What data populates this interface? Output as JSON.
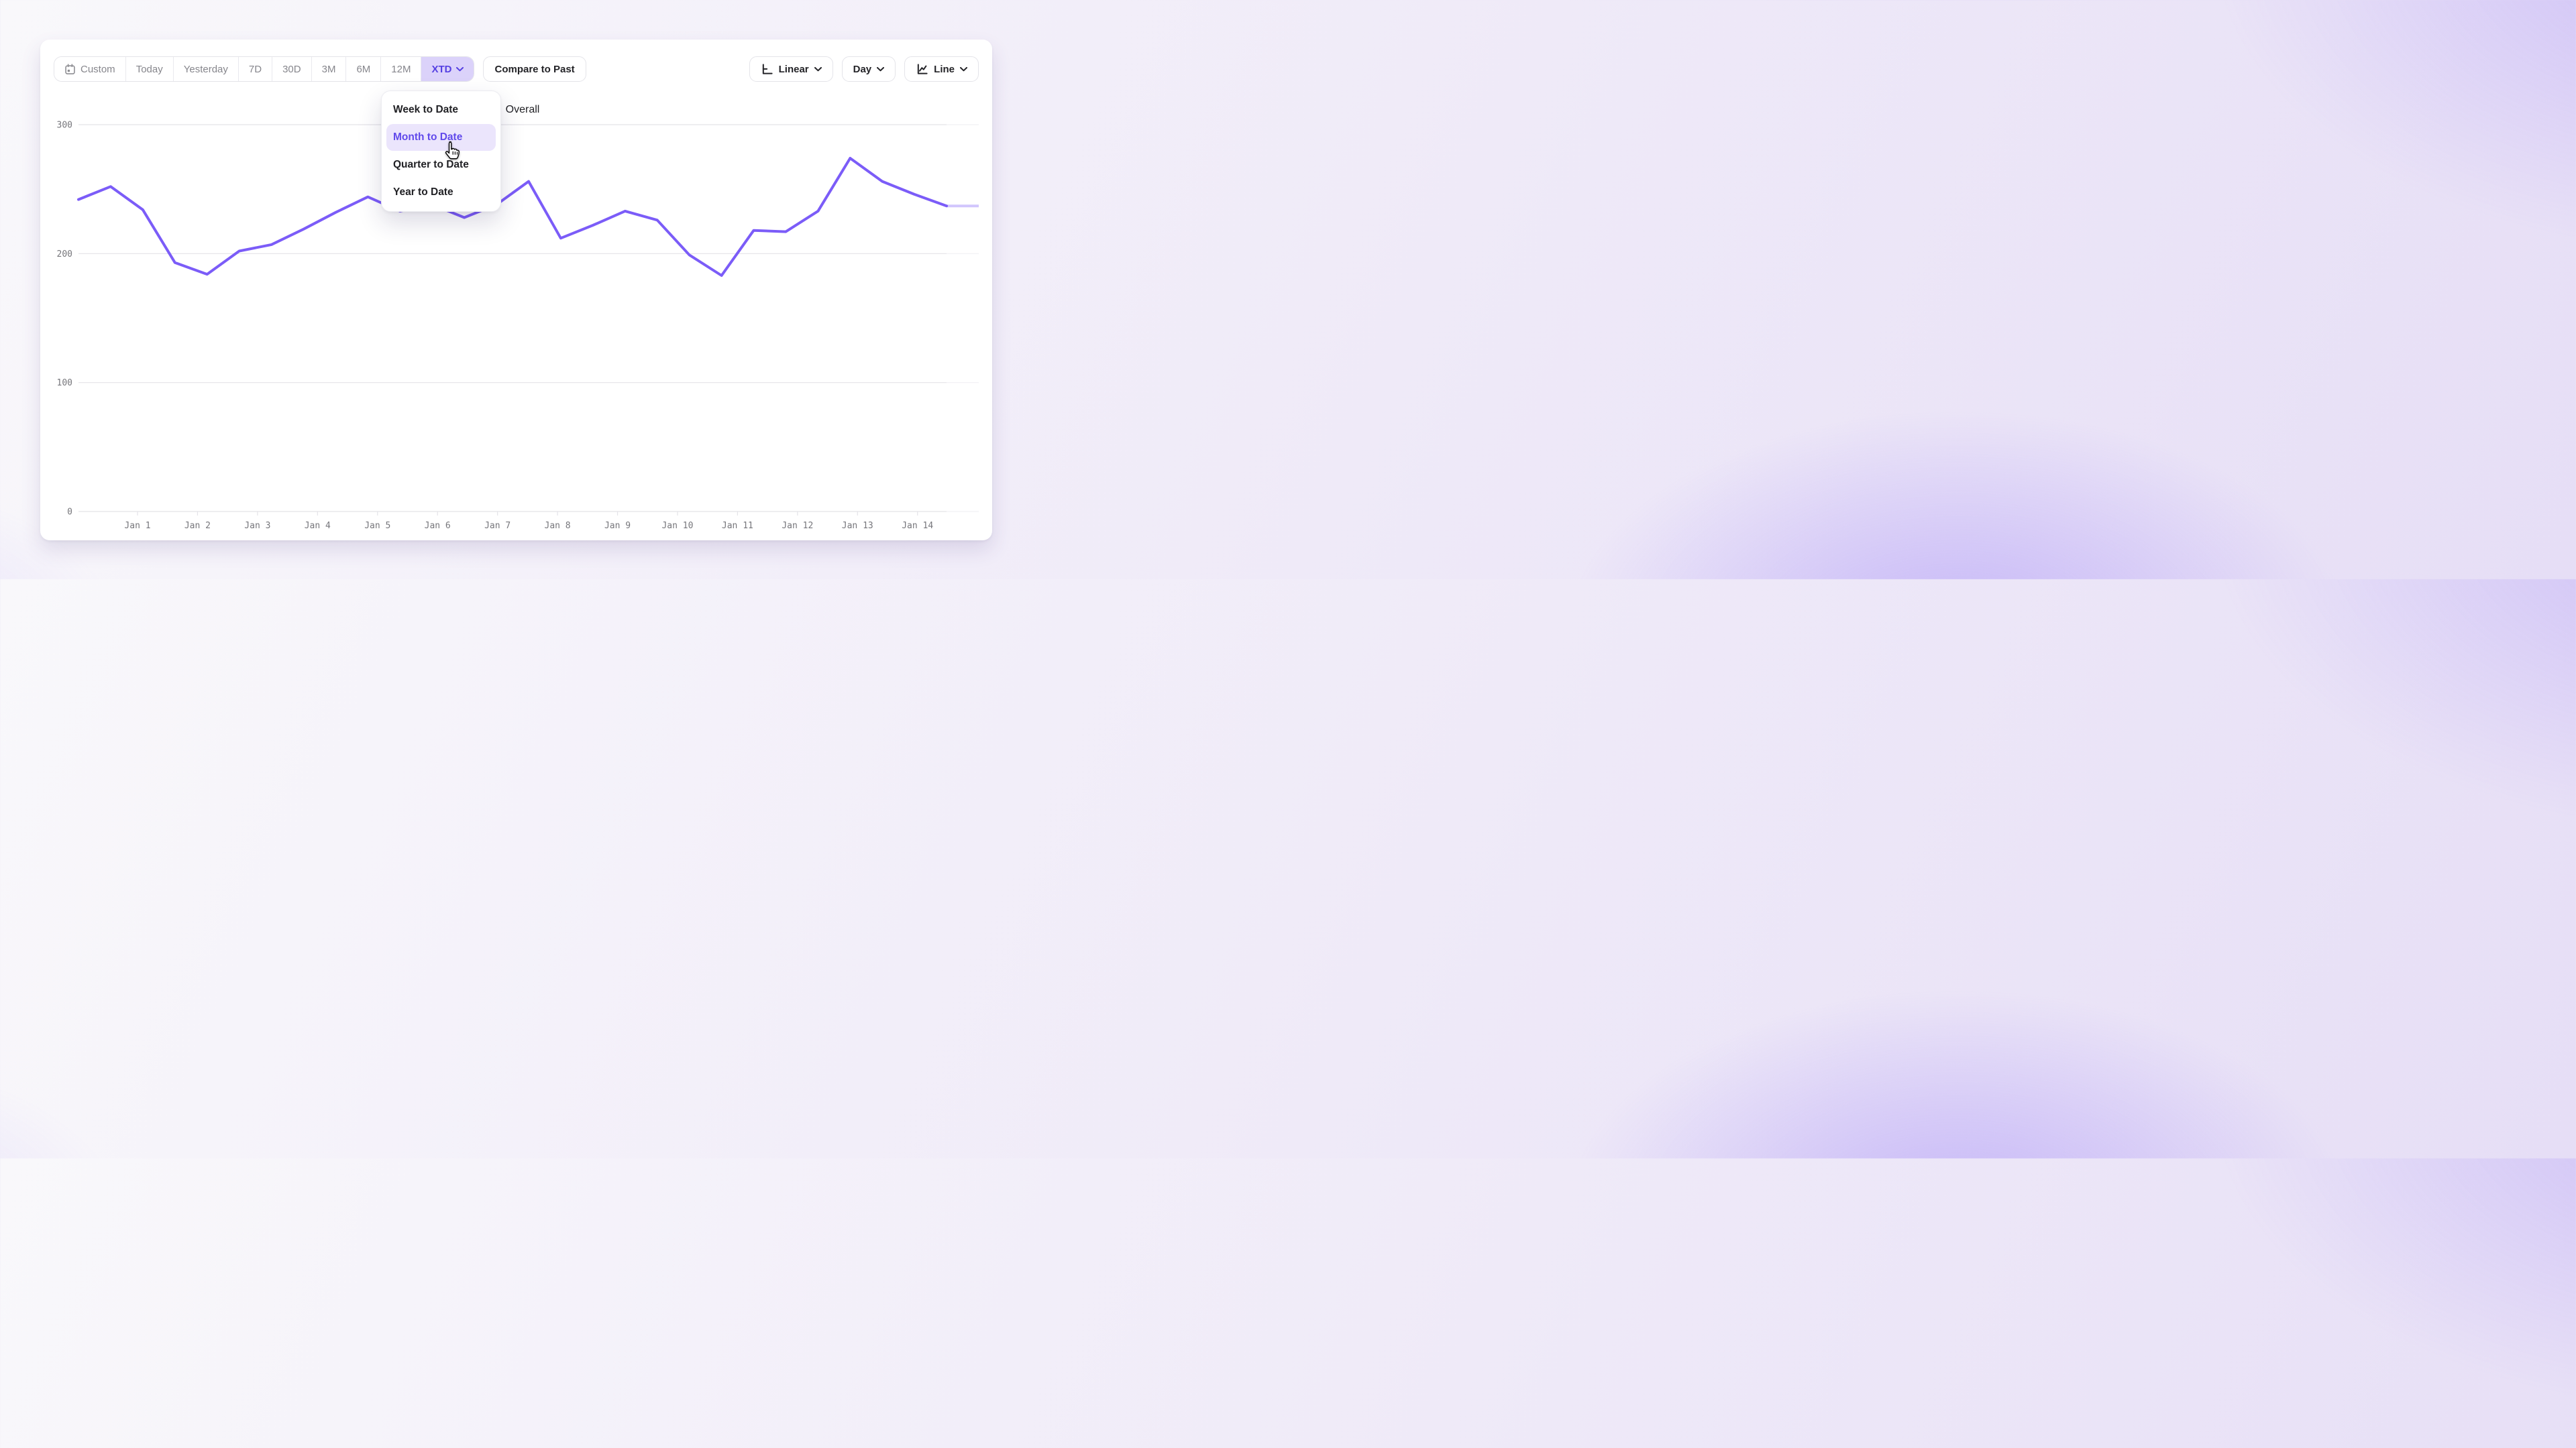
{
  "toolbar": {
    "ranges": [
      "Custom",
      "Today",
      "Yesterday",
      "7D",
      "30D",
      "3M",
      "6M",
      "12M",
      "XTD"
    ],
    "active_range": "XTD",
    "compare_label": "Compare to Past",
    "scale_label": "Linear",
    "granularity_label": "Day",
    "chart_type_label": "Line"
  },
  "dropdown": {
    "items": [
      {
        "label": "Week to Date",
        "active": false
      },
      {
        "label": "Month to Date",
        "active": true
      },
      {
        "label": "Quarter to Date",
        "active": false
      },
      {
        "label": "Year to Date",
        "active": false
      }
    ]
  },
  "legend": {
    "label": "Overall",
    "color": "#7b5cf8"
  },
  "chart_data": {
    "type": "line",
    "title": "",
    "xlabel": "",
    "ylabel": "",
    "x_tick_labels": [
      "Jan 1",
      "Jan 2",
      "Jan 3",
      "Jan 4",
      "Jan 5",
      "Jan 6",
      "Jan 7",
      "Jan 8",
      "Jan 9",
      "Jan 10",
      "Jan 11",
      "Jan 12",
      "Jan 13",
      "Jan 14"
    ],
    "y_ticks": [
      0,
      100,
      200,
      300
    ],
    "ylim": [
      0,
      300
    ],
    "grid": "horizontal",
    "legend_position": "top-center",
    "series": [
      {
        "name": "Overall",
        "color": "#7b5cf8",
        "values": [
          242,
          252,
          234,
          193,
          184,
          202,
          207,
          219,
          232,
          244,
          233,
          238,
          228,
          238,
          256,
          212,
          222,
          233,
          226,
          199,
          183,
          218,
          217,
          233,
          274,
          256,
          246,
          237,
          237
        ]
      }
    ],
    "incomplete_from_index": 27
  }
}
